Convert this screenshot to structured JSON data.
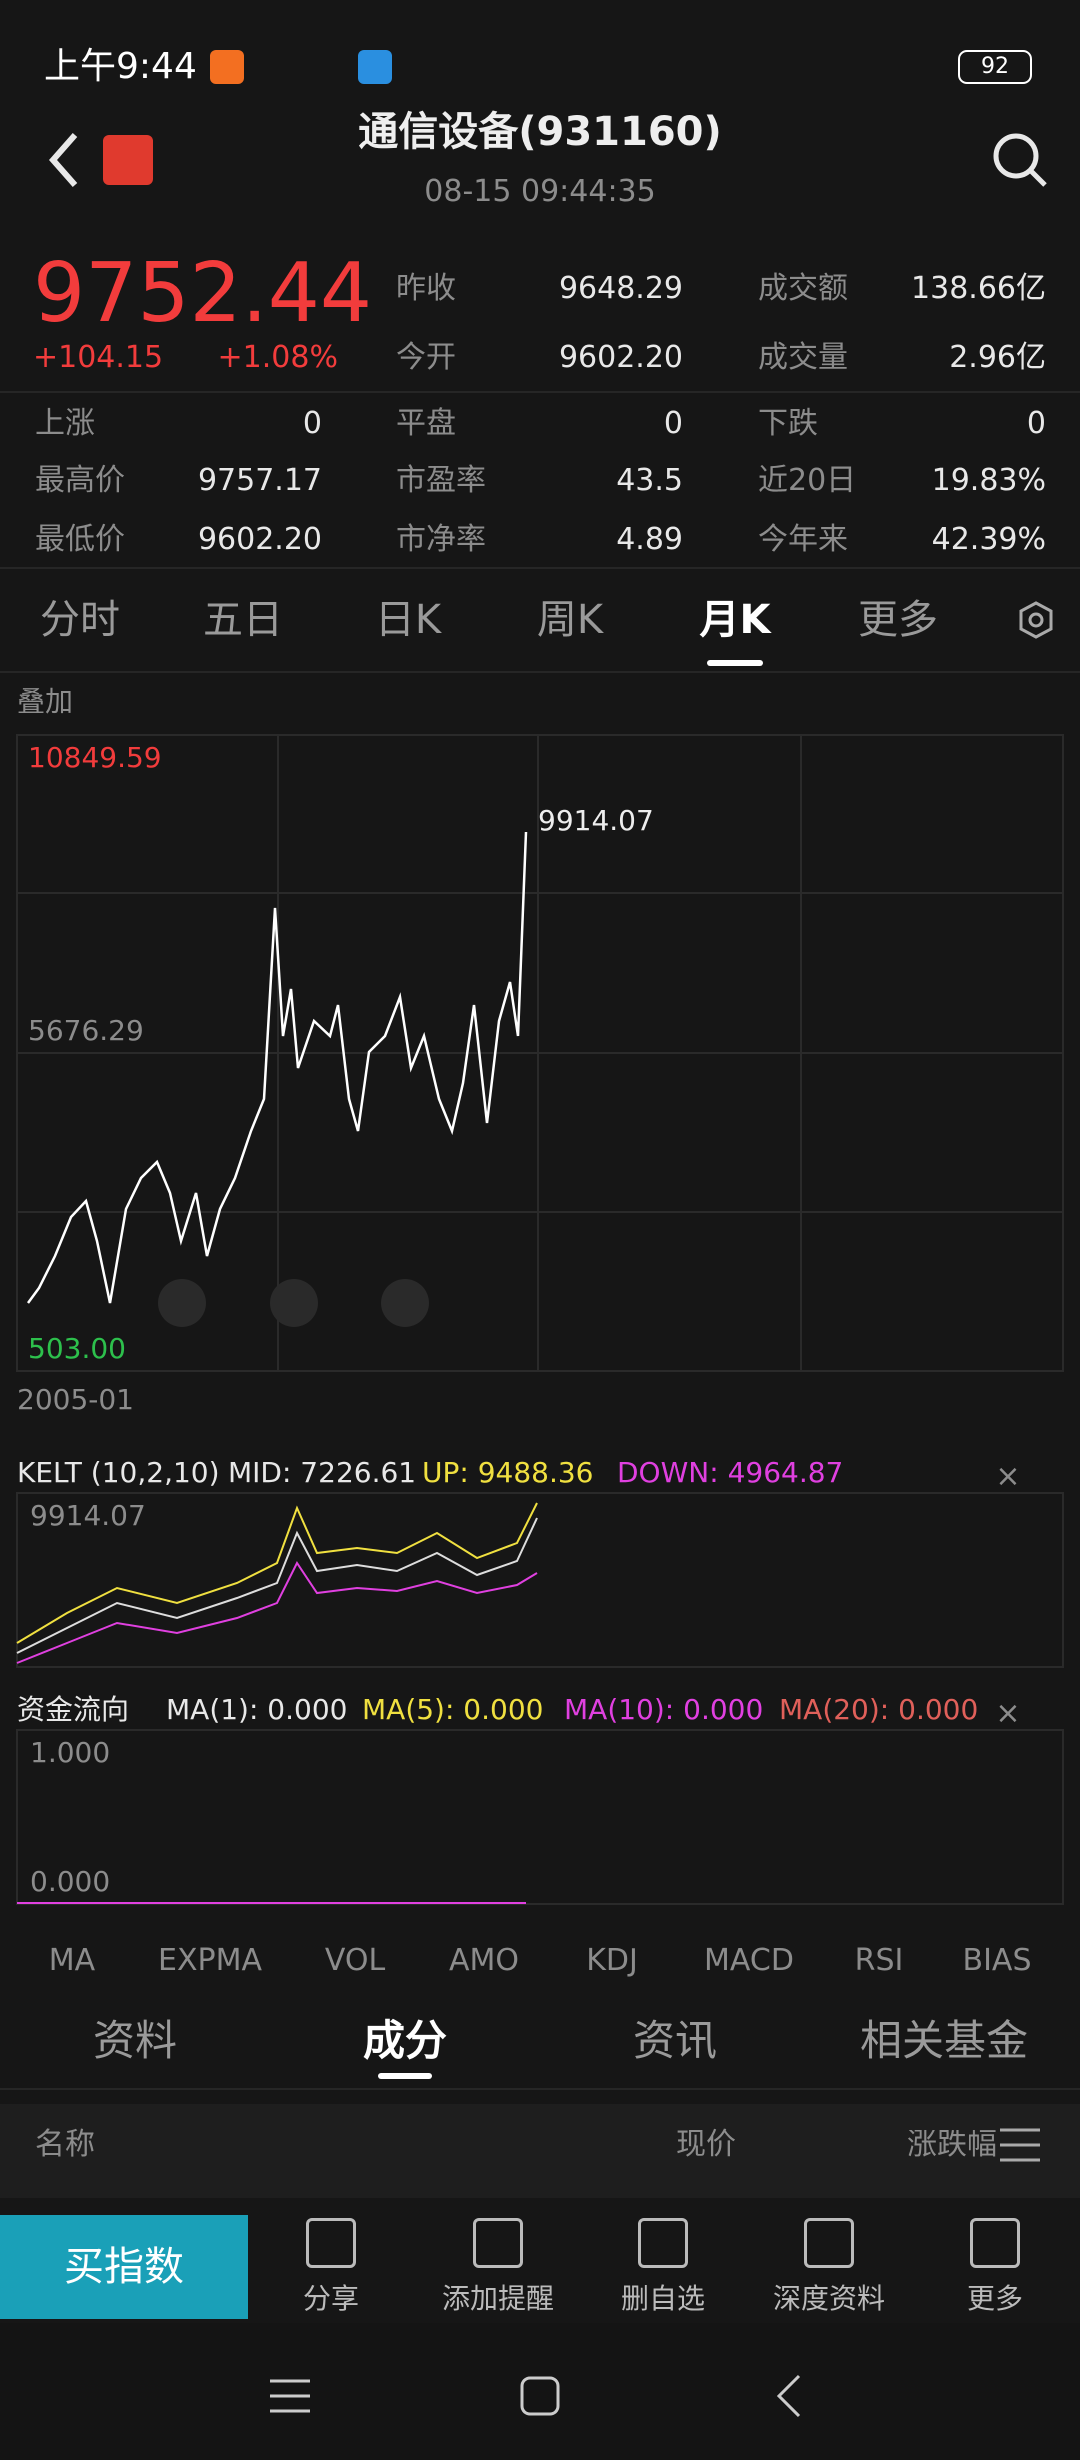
{
  "status": {
    "time": "上午9:44",
    "battery": "92"
  },
  "header": {
    "title": "通信设备(931160)",
    "datetime": "08-15 09:44:35"
  },
  "quote": {
    "price": "9752.44",
    "change": "+104.15",
    "change_pct": "+1.08%"
  },
  "stats": [
    [
      "昨收",
      "9648.29"
    ],
    [
      "成交额",
      "138.66亿"
    ],
    [
      "今开",
      "9602.20"
    ],
    [
      "成交量",
      "2.96亿"
    ],
    [
      "上涨",
      "0"
    ],
    [
      "平盘",
      "0"
    ],
    [
      "下跌",
      "0"
    ],
    [
      "最高价",
      "9757.17"
    ],
    [
      "市盈率",
      "43.5"
    ],
    [
      "近20日",
      "19.83%"
    ],
    [
      "最低价",
      "9602.20"
    ],
    [
      "市净率",
      "4.89"
    ],
    [
      "今年来",
      "42.39%"
    ]
  ],
  "tabs": [
    "分时",
    "五日",
    "日K",
    "周K",
    "月K",
    "更多"
  ],
  "chart": {
    "overlay": "叠加",
    "max": "10849.59",
    "mid": "5676.29",
    "min": "503.00",
    "peak": "9914.07",
    "start": "2005-01"
  },
  "kelt": {
    "name": "KELT (10,2,10)",
    "mid": "MID: 7226.61",
    "up": "UP: 9488.36",
    "down": "DOWN: 4964.87",
    "axis_top": "9914.07"
  },
  "fund": {
    "name": "资金流向",
    "ma1": "MA(1): 0.000",
    "ma5": "MA(5): 0.000",
    "ma10": "MA(10): 0.000",
    "ma20": "MA(20): 0.000",
    "axis_top": "1.000",
    "axis_bottom": "0.000"
  },
  "indicators": [
    "MA",
    "EXPMA",
    "VOL",
    "AMO",
    "KDJ",
    "MACD",
    "RSI",
    "BIAS"
  ],
  "subtabs": [
    "资料",
    "成分",
    "资讯",
    "相关基金"
  ],
  "list_header": [
    "名称",
    "现价",
    "涨跌幅"
  ],
  "buy": "买指数",
  "actions": [
    "分享",
    "添加提醒",
    "删自选",
    "深度资料",
    "更多"
  ]
}
